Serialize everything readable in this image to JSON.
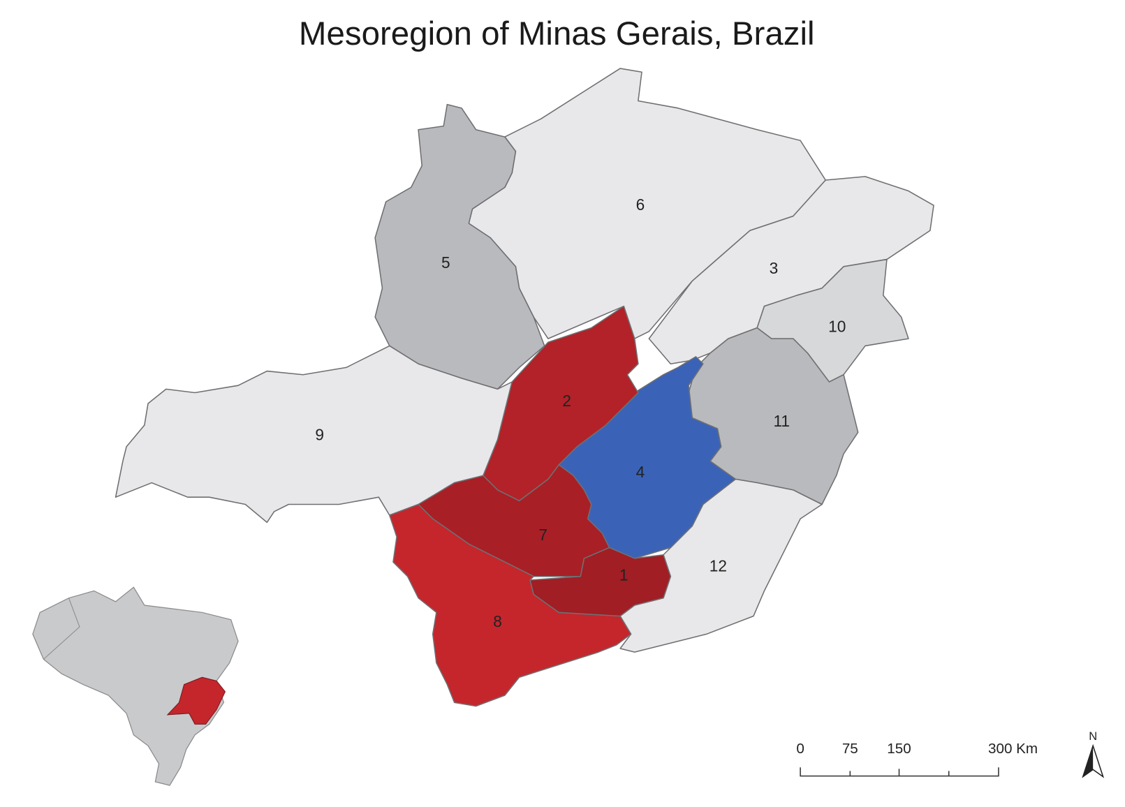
{
  "title": "Mesoregion of Minas Gerais, Brazil",
  "regions": [
    {
      "label": "1",
      "color": "#a01e24"
    },
    {
      "label": "2",
      "color": "#b22228"
    },
    {
      "label": "3",
      "color": "#e8e8ea"
    },
    {
      "label": "4",
      "color": "#3a63b8"
    },
    {
      "label": "5",
      "color": "#b9babd"
    },
    {
      "label": "6",
      "color": "#e8e8ea"
    },
    {
      "label": "7",
      "color": "#a91f26"
    },
    {
      "label": "8",
      "color": "#c4262c"
    },
    {
      "label": "9",
      "color": "#e8e8ea"
    },
    {
      "label": "10",
      "color": "#d7d8da"
    },
    {
      "label": "11",
      "color": "#b9babd"
    },
    {
      "label": "12",
      "color": "#e8e8ea"
    }
  ],
  "scale_bar": {
    "labels": [
      "0",
      "75",
      "150",
      "300 Km"
    ]
  },
  "north_arrow": {
    "label": "N"
  }
}
